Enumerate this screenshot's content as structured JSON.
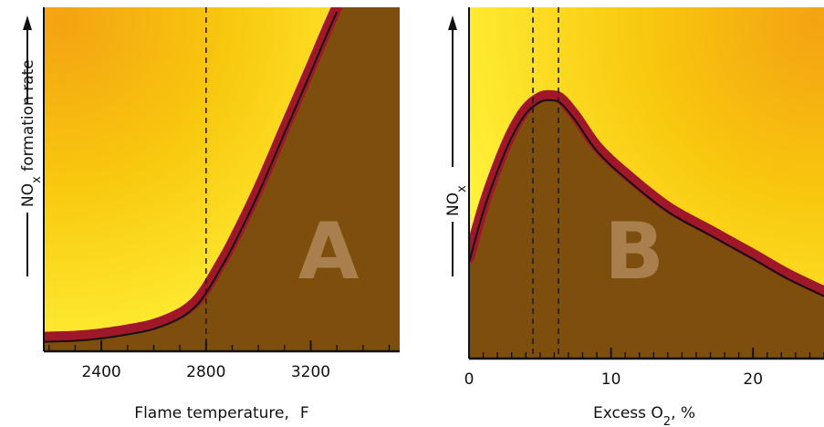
{
  "colors": {
    "curve_outer": "#a0172a",
    "curve_inner": "#111111",
    "region_below": "#7e4f0c",
    "gradient_hot": "#f4a312",
    "gradient_mid": "#f8c80e",
    "gradient_cool": "#fff33a",
    "dashed": "#1a1a1a"
  },
  "chart_data": [
    {
      "type": "area",
      "panel_label": "A",
      "xlabel_main": "Flame temperature,",
      "xlabel_unit": "F",
      "ylabel_main": "NO",
      "ylabel_sub": "x",
      "ylabel_rest": " formation rate",
      "ylabel_has_arrow": true,
      "xlim": [
        2180,
        3540
      ],
      "ylim": [
        0,
        100
      ],
      "x_ticks": [
        2400,
        2800,
        3200
      ],
      "x_tick_labels": [
        "2400",
        "2800",
        "3200"
      ],
      "x_minor_step": 100,
      "y_ticks_shown": false,
      "dashed_lines_x": [
        2800
      ],
      "series": [
        {
          "x": [
            2180,
            2300,
            2400,
            2500,
            2600,
            2700,
            2760,
            2800,
            2850,
            2900,
            3000,
            3100,
            3200,
            3260,
            3300
          ],
          "values": [
            2,
            2.3,
            3,
            4.2,
            5.8,
            9,
            12.5,
            16.5,
            23,
            30,
            46,
            64,
            82,
            93,
            100
          ]
        }
      ]
    },
    {
      "type": "area",
      "panel_label": "B",
      "xlabel_main": "Excess O",
      "xlabel_sub": "2",
      "xlabel_rest": ", %",
      "ylabel_main": "NO",
      "ylabel_sub": "x",
      "ylabel_has_arrow": true,
      "xlim": [
        0,
        25
      ],
      "ylim": [
        0,
        100
      ],
      "x_ticks": [
        0,
        10,
        20
      ],
      "x_tick_labels": [
        "0",
        "10",
        "20"
      ],
      "x_minor_step": 1,
      "y_ticks_shown": false,
      "dashed_lines_x": [
        4.5,
        6.3
      ],
      "series": [
        {
          "x": [
            0,
            1,
            2,
            3,
            4,
            5,
            5.8,
            6.5,
            7.5,
            9,
            11,
            14,
            17,
            20,
            22.5,
            25
          ],
          "values": [
            35,
            50,
            62,
            72,
            79,
            82.5,
            83,
            82,
            77,
            68,
            60,
            50,
            43,
            36,
            30,
            25
          ]
        }
      ]
    }
  ]
}
